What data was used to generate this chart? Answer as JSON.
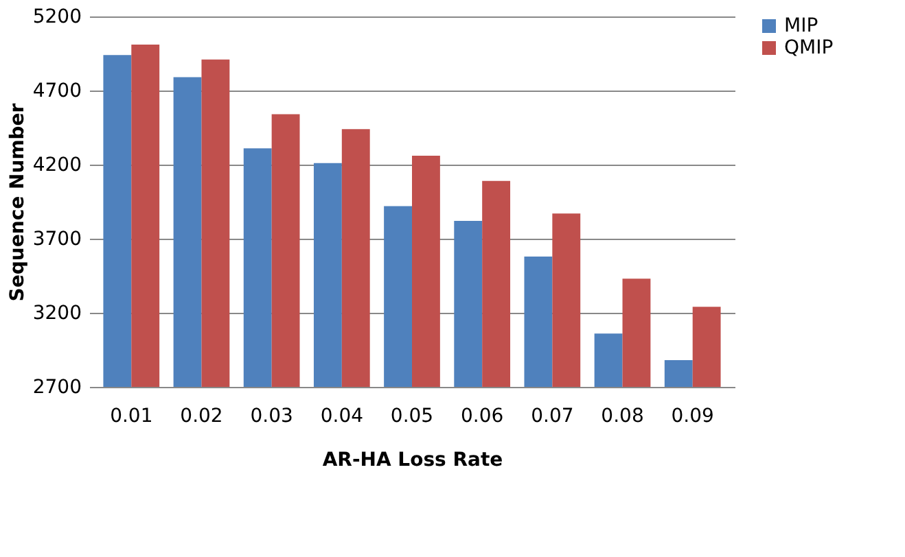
{
  "chart_data": {
    "type": "bar",
    "xlabel": "AR-HA Loss Rate",
    "ylabel": "Sequence Number",
    "categories": [
      "0.01",
      "0.02",
      "0.03",
      "0.04",
      "0.05",
      "0.06",
      "0.07",
      "0.08",
      "0.09"
    ],
    "series": [
      {
        "name": "MIP",
        "color": "#4f81bd",
        "values": [
          4940,
          4790,
          4310,
          4210,
          3920,
          3820,
          3580,
          3060,
          2880
        ]
      },
      {
        "name": "QMIP",
        "color": "#c0504d",
        "values": [
          5010,
          4910,
          4540,
          4440,
          4260,
          4090,
          3870,
          3430,
          3240
        ]
      }
    ],
    "ylim": [
      2700,
      5200
    ],
    "yticks": [
      2700,
      3200,
      3700,
      4200,
      4700,
      5200
    ],
    "grid": "y",
    "legend": "right"
  }
}
